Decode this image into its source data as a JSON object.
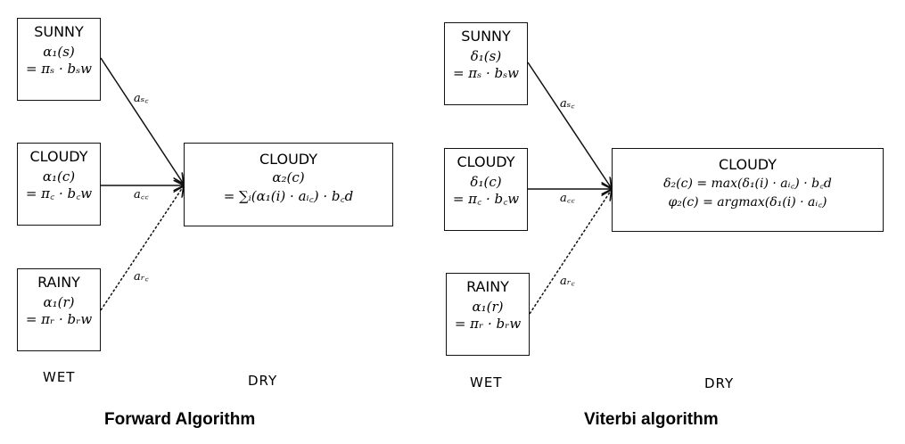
{
  "forward": {
    "sunny": {
      "title": "SUNNY",
      "line1": "α₁(s)",
      "line2": "= πₛ · bₛw"
    },
    "cloudy_left": {
      "title": "CLOUDY",
      "line1": "α₁(c)",
      "line2": "= π꜀ · b꜀w"
    },
    "rainy": {
      "title": "RAINY",
      "line1": "α₁(r)",
      "line2": "= πᵣ · bᵣw"
    },
    "target": {
      "title": "CLOUDY",
      "line1": "α₂(c)",
      "line2": "= ∑ᵢ(α₁(i) · aᵢ꜀) · b꜀d"
    },
    "edges": {
      "asc": "aₛ꜀",
      "acc": "a꜀꜀",
      "arc": "aᵣ꜀"
    },
    "wet": "WET",
    "dry": "DRY",
    "caption": "Forward Algorithm"
  },
  "viterbi": {
    "sunny": {
      "title": "SUNNY",
      "line1": "δ₁(s)",
      "line2": "= πₛ · bₛw"
    },
    "cloudy_left": {
      "title": "CLOUDY",
      "line1": "δ₁(c)",
      "line2": "= π꜀ · b꜀w"
    },
    "rainy": {
      "title": "RAINY",
      "line1": "α₁(r)",
      "line2": "= πᵣ · bᵣw"
    },
    "target": {
      "title": "CLOUDY",
      "line1": "δ₂(c) = max(δ₁(i) · aᵢ꜀) · b꜀d",
      "line2": "φ₂(c) = argmax(δ₁(i) · aᵢ꜀)"
    },
    "edges": {
      "asc": "aₛ꜀",
      "acc": "a꜀꜀",
      "arc": "aᵣ꜀"
    },
    "wet": "WET",
    "dry": "DRY",
    "caption": "Viterbi algorithm"
  }
}
